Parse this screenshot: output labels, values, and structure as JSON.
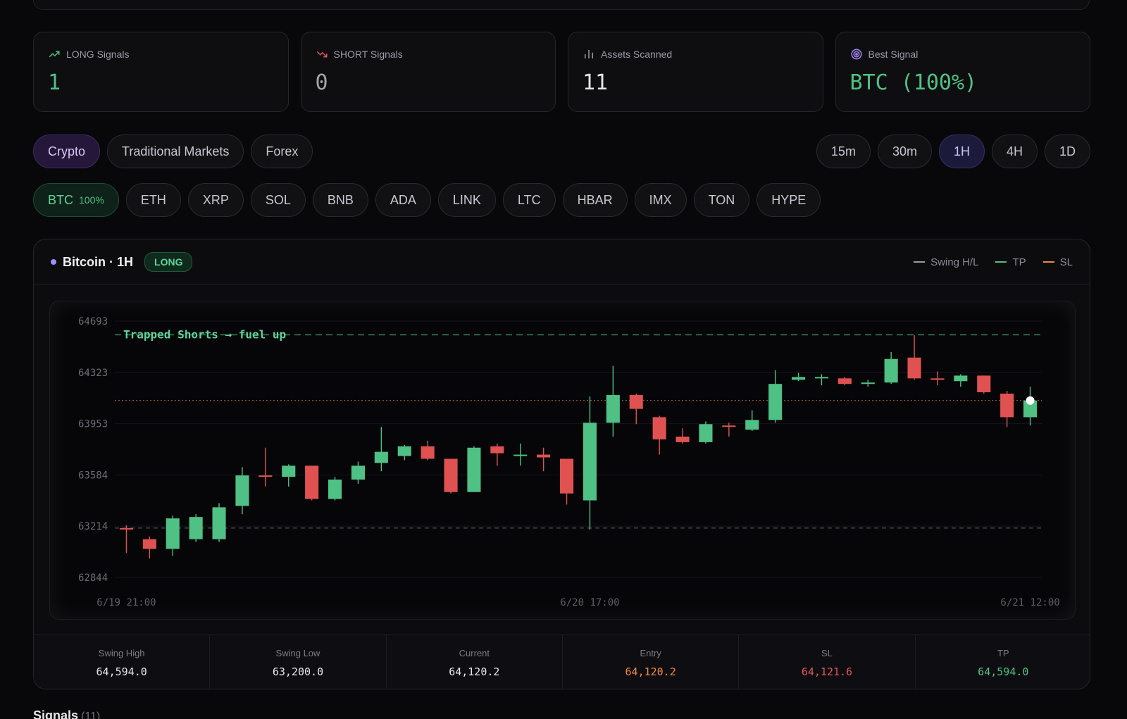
{
  "stats": [
    {
      "label": "LONG Signals",
      "value": "1",
      "icon": "trending-up-icon",
      "color": "#4fc185"
    },
    {
      "label": "SHORT Signals",
      "value": "0",
      "icon": "trending-down-icon",
      "color": "#a3a3ab"
    },
    {
      "label": "Assets Scanned",
      "value": "11",
      "icon": "bar-chart-icon",
      "color": "#e5e5e8"
    },
    {
      "label": "Best Signal",
      "value": "BTC (100%)",
      "icon": "target-icon",
      "color": "#4fc185"
    }
  ],
  "markets": [
    "Crypto",
    "Traditional Markets",
    "Forex"
  ],
  "active_market": "Crypto",
  "timeframes": [
    "15m",
    "30m",
    "1H",
    "4H",
    "1D"
  ],
  "active_timeframe": "1H",
  "assets": [
    {
      "symbol": "BTC",
      "pct": "100%"
    },
    {
      "symbol": "ETH"
    },
    {
      "symbol": "XRP"
    },
    {
      "symbol": "SOL"
    },
    {
      "symbol": "BNB"
    },
    {
      "symbol": "ADA"
    },
    {
      "symbol": "LINK"
    },
    {
      "symbol": "LTC"
    },
    {
      "symbol": "HBAR"
    },
    {
      "symbol": "IMX"
    },
    {
      "symbol": "TON"
    },
    {
      "symbol": "HYPE"
    }
  ],
  "chart_card": {
    "title": "Bitcoin · 1H",
    "badge": "LONG",
    "legend": [
      {
        "label": "Swing H/L",
        "color": "#9a9aa2"
      },
      {
        "label": "TP",
        "color": "#4fc185"
      },
      {
        "label": "SL",
        "color": "#f08a3c"
      }
    ]
  },
  "chart_data": {
    "type": "candlestick",
    "y_ticks": [
      "64693",
      "64323",
      "63953",
      "63584",
      "63214",
      "62844"
    ],
    "ylim": [
      62844,
      64693
    ],
    "x_ticks": [
      {
        "label": "6/19 21:00",
        "index": 0
      },
      {
        "label": "6/20 17:00",
        "index": 20
      },
      {
        "label": "6/21 12:00",
        "index": 39
      }
    ],
    "annotation": "Trapped Shorts → fuel up",
    "lines": {
      "swing_high": 64594.0,
      "swing_low": 63200.0,
      "current": 64120.2
    },
    "up_color": "#4fc185",
    "down_color": "#e05252",
    "candles": [
      [
        63200,
        63190,
        63220,
        63020
      ],
      [
        63120,
        63050,
        63140,
        62980
      ],
      [
        63050,
        63270,
        63290,
        63000
      ],
      [
        63120,
        63280,
        63300,
        63100
      ],
      [
        63120,
        63350,
        63380,
        63100
      ],
      [
        63360,
        63580,
        63640,
        63300
      ],
      [
        63580,
        63570,
        63780,
        63500
      ],
      [
        63570,
        63650,
        63660,
        63500
      ],
      [
        63650,
        63410,
        63650,
        63400
      ],
      [
        63410,
        63550,
        63570,
        63400
      ],
      [
        63550,
        63650,
        63680,
        63520
      ],
      [
        63670,
        63750,
        63930,
        63610
      ],
      [
        63720,
        63790,
        63800,
        63690
      ],
      [
        63790,
        63700,
        63830,
        63690
      ],
      [
        63700,
        63460,
        63700,
        63450
      ],
      [
        63460,
        63780,
        63790,
        63460
      ],
      [
        63790,
        63740,
        63810,
        63650
      ],
      [
        63720,
        63730,
        63810,
        63650
      ],
      [
        63730,
        63710,
        63780,
        63610
      ],
      [
        63700,
        63450,
        63700,
        63370
      ],
      [
        63400,
        63960,
        64150,
        63190
      ],
      [
        63960,
        64160,
        64370,
        63860
      ],
      [
        64160,
        64060,
        64170,
        63950
      ],
      [
        64000,
        63840,
        64010,
        63730
      ],
      [
        63860,
        63820,
        63920,
        63810
      ],
      [
        63820,
        63950,
        63970,
        63810
      ],
      [
        63940,
        63930,
        63960,
        63860
      ],
      [
        63910,
        63980,
        64050,
        63900
      ],
      [
        63980,
        64240,
        64340,
        63960
      ],
      [
        64270,
        64290,
        64320,
        64260
      ],
      [
        64290,
        64290,
        64310,
        64230
      ],
      [
        64280,
        64240,
        64290,
        64230
      ],
      [
        64250,
        64250,
        64270,
        64220
      ],
      [
        64250,
        64420,
        64470,
        64240
      ],
      [
        64430,
        64280,
        64590,
        64270
      ],
      [
        64280,
        64270,
        64330,
        64230
      ],
      [
        64260,
        64300,
        64310,
        64220
      ],
      [
        64300,
        64180,
        64300,
        64170
      ],
      [
        64170,
        64000,
        64190,
        63930
      ],
      [
        64000,
        64120,
        64220,
        63940
      ]
    ]
  },
  "levels": [
    {
      "label": "Swing High",
      "value": "64,594.0",
      "color": "#e8e8ec"
    },
    {
      "label": "Swing Low",
      "value": "63,200.0",
      "color": "#e8e8ec"
    },
    {
      "label": "Current",
      "value": "64,120.2",
      "color": "#e8e8ec"
    },
    {
      "label": "Entry",
      "value": "64,120.2",
      "color": "#f08a3c"
    },
    {
      "label": "SL",
      "value": "64,121.6",
      "color": "#e25555"
    },
    {
      "label": "TP",
      "value": "64,594.0",
      "color": "#4fc185"
    }
  ],
  "signals": {
    "title": "Signals",
    "count": "(11)"
  }
}
